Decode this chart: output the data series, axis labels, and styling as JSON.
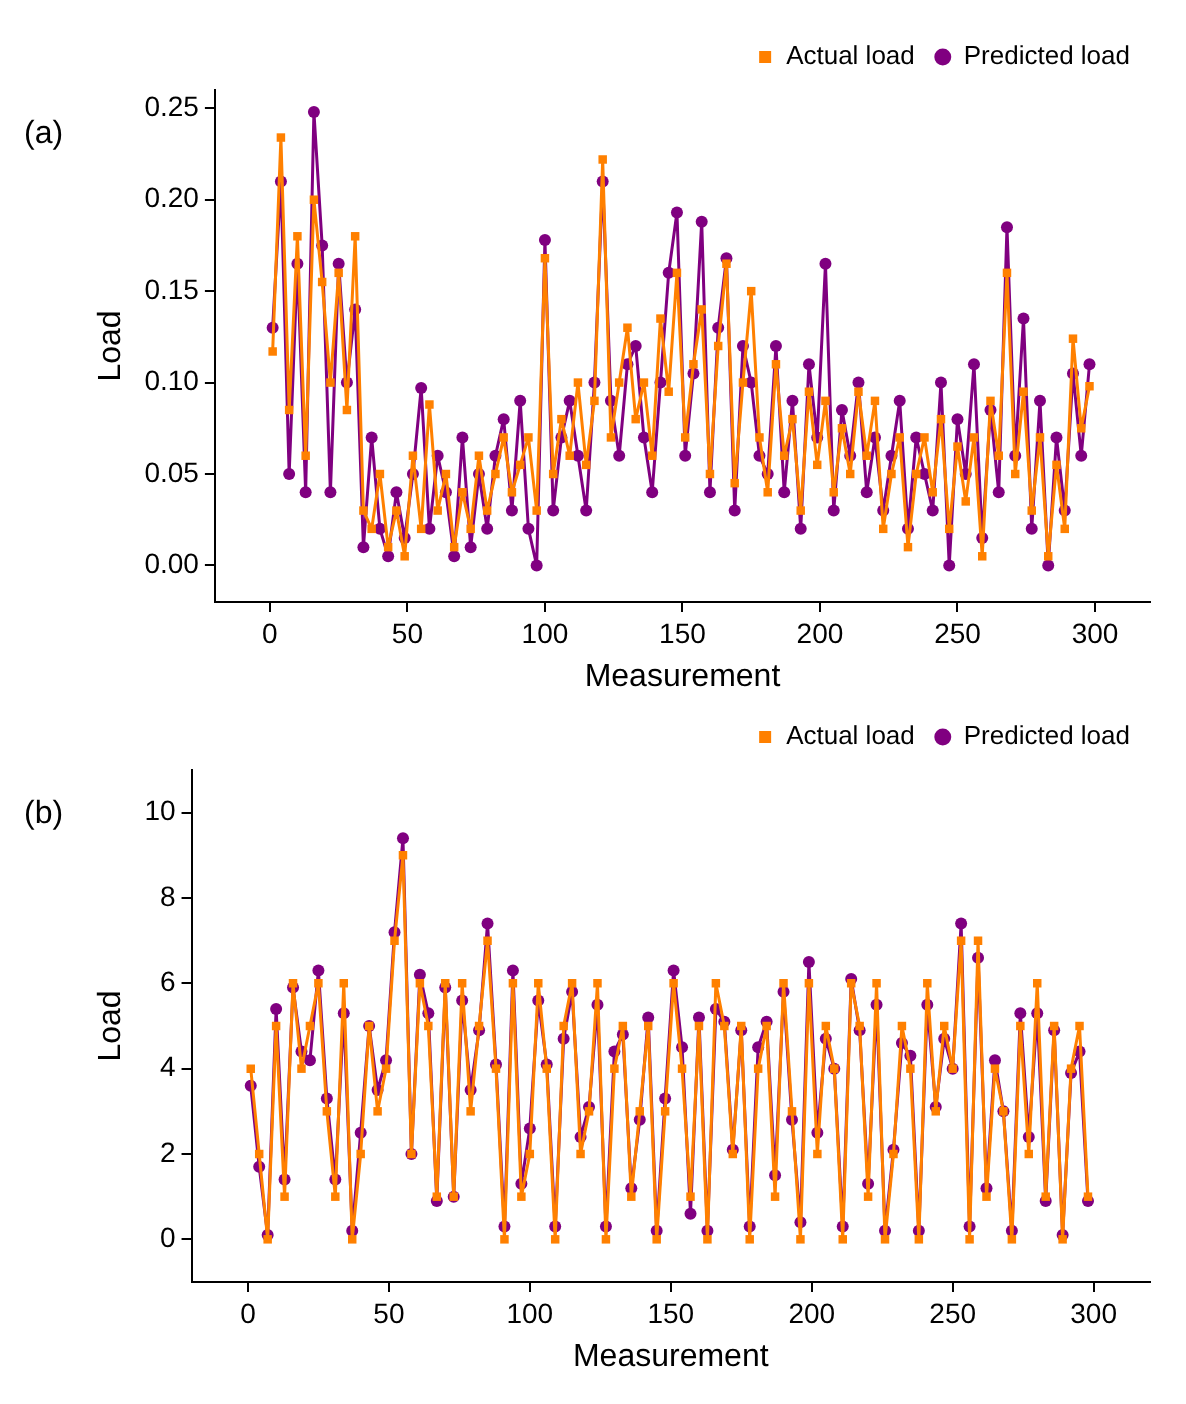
{
  "chart_data": [
    {
      "type": "line",
      "title": "(a)",
      "xlabel": "Measurement",
      "ylabel": "Load",
      "xlim": [
        -20,
        320
      ],
      "xticks": [
        0,
        50,
        100,
        150,
        200,
        250,
        300
      ],
      "ylim": [
        -0.02,
        0.26
      ],
      "yticks": [
        {
          "value": 0,
          "label": "0.00"
        },
        {
          "value": 0.05,
          "label": "0.05"
        },
        {
          "value": 0.1,
          "label": "0.10"
        },
        {
          "value": 0.15,
          "label": "0.15"
        },
        {
          "value": 0.2,
          "label": "0.20"
        },
        {
          "value": 0.25,
          "label": "0.25"
        }
      ],
      "grid": false,
      "legend": "top right",
      "line_style": "solid",
      "x": [
        1,
        4,
        7,
        10,
        13,
        16,
        19,
        22,
        25,
        28,
        31,
        34,
        37,
        40,
        43,
        46,
        49,
        52,
        55,
        58,
        61,
        64,
        67,
        70,
        73,
        76,
        79,
        82,
        85,
        88,
        91,
        94,
        97,
        100,
        103,
        106,
        109,
        112,
        115,
        118,
        121,
        124,
        127,
        130,
        133,
        136,
        139,
        142,
        145,
        148,
        151,
        154,
        157,
        160,
        163,
        166,
        169,
        172,
        175,
        178,
        181,
        184,
        187,
        190,
        193,
        196,
        199,
        202,
        205,
        208,
        211,
        214,
        217,
        220,
        223,
        226,
        229,
        232,
        235,
        238,
        241,
        244,
        247,
        250,
        253,
        256,
        259,
        262,
        265,
        268,
        271,
        274,
        277,
        280,
        283,
        286,
        289,
        292,
        295,
        298
      ],
      "series": [
        {
          "name": "Actual load",
          "color": "#ff8000",
          "marker": "square",
          "values": [
            0.117,
            0.234,
            0.085,
            0.18,
            0.06,
            0.2,
            0.155,
            0.1,
            0.16,
            0.085,
            0.18,
            0.03,
            0.02,
            0.05,
            0.01,
            0.03,
            0.005,
            0.06,
            0.02,
            0.088,
            0.03,
            0.05,
            0.01,
            0.04,
            0.02,
            0.06,
            0.03,
            0.05,
            0.07,
            0.04,
            0.055,
            0.07,
            0.03,
            0.168,
            0.05,
            0.08,
            0.06,
            0.1,
            0.055,
            0.09,
            0.222,
            0.07,
            0.1,
            0.13,
            0.08,
            0.1,
            0.06,
            0.135,
            0.095,
            0.16,
            0.07,
            0.11,
            0.14,
            0.05,
            0.12,
            0.165,
            0.045,
            0.1,
            0.15,
            0.07,
            0.04,
            0.11,
            0.06,
            0.08,
            0.03,
            0.095,
            0.055,
            0.09,
            0.04,
            0.075,
            0.05,
            0.095,
            0.06,
            0.09,
            0.02,
            0.05,
            0.07,
            0.01,
            0.05,
            0.07,
            0.04,
            0.08,
            0.02,
            0.065,
            0.035,
            0.07,
            0.005,
            0.09,
            0.06,
            0.16,
            0.05,
            0.095,
            0.03,
            0.07,
            0.005,
            0.055,
            0.02,
            0.124,
            0.075,
            0.098
          ]
        },
        {
          "name": "Predicted load",
          "color": "#800080",
          "marker": "circle",
          "values": [
            0.13,
            0.21,
            0.05,
            0.165,
            0.04,
            0.248,
            0.175,
            0.04,
            0.165,
            0.1,
            0.14,
            0.01,
            0.07,
            0.02,
            0.005,
            0.04,
            0.015,
            0.05,
            0.097,
            0.02,
            0.06,
            0.04,
            0.005,
            0.07,
            0.01,
            0.05,
            0.02,
            0.06,
            0.08,
            0.03,
            0.09,
            0.02,
            0.0,
            0.178,
            0.03,
            0.07,
            0.09,
            0.06,
            0.03,
            0.1,
            0.21,
            0.09,
            0.06,
            0.11,
            0.12,
            0.07,
            0.04,
            0.1,
            0.16,
            0.193,
            0.06,
            0.105,
            0.188,
            0.04,
            0.13,
            0.168,
            0.03,
            0.12,
            0.1,
            0.06,
            0.05,
            0.12,
            0.04,
            0.09,
            0.02,
            0.11,
            0.07,
            0.165,
            0.03,
            0.085,
            0.06,
            0.1,
            0.04,
            0.07,
            0.03,
            0.06,
            0.09,
            0.02,
            0.07,
            0.05,
            0.03,
            0.1,
            0.0,
            0.08,
            0.05,
            0.11,
            0.015,
            0.085,
            0.04,
            0.185,
            0.06,
            0.135,
            0.02,
            0.09,
            0.0,
            0.07,
            0.03,
            0.105,
            0.06,
            0.11
          ]
        }
      ]
    },
    {
      "type": "line",
      "title": "(b)",
      "xlabel": "Measurement",
      "ylabel": "Load",
      "xlim": [
        -20,
        320
      ],
      "xticks": [
        0,
        50,
        100,
        150,
        200,
        250,
        300
      ],
      "ylim": [
        -1,
        11
      ],
      "yticks": [
        0,
        2,
        4,
        6,
        8,
        10
      ],
      "grid": false,
      "legend": "top right",
      "line_style": "solid",
      "x": [
        1,
        4,
        7,
        10,
        13,
        16,
        19,
        22,
        25,
        28,
        31,
        34,
        37,
        40,
        43,
        46,
        49,
        52,
        55,
        58,
        61,
        64,
        67,
        70,
        73,
        76,
        79,
        82,
        85,
        88,
        91,
        94,
        97,
        100,
        103,
        106,
        109,
        112,
        115,
        118,
        121,
        124,
        127,
        130,
        133,
        136,
        139,
        142,
        145,
        148,
        151,
        154,
        157,
        160,
        163,
        166,
        169,
        172,
        175,
        178,
        181,
        184,
        187,
        190,
        193,
        196,
        199,
        202,
        205,
        208,
        211,
        214,
        217,
        220,
        223,
        226,
        229,
        232,
        235,
        238,
        241,
        244,
        247,
        250,
        253,
        256,
        259,
        262,
        265,
        268,
        271,
        274,
        277,
        280,
        283,
        286,
        289,
        292,
        295,
        298
      ],
      "series": [
        {
          "name": "Actual load",
          "color": "#ff8000",
          "marker": "square",
          "values": [
            4,
            2,
            0,
            5,
            1,
            6,
            4,
            5,
            6,
            3,
            1,
            6,
            0,
            2,
            5,
            3,
            4,
            7,
            9,
            2,
            6,
            5,
            1,
            6,
            1,
            6,
            3,
            5,
            7,
            4,
            0,
            6,
            1,
            2,
            6,
            4,
            0,
            5,
            6,
            2,
            3,
            6,
            0,
            4,
            5,
            1,
            3,
            5,
            0,
            3,
            6,
            4,
            1,
            5,
            0,
            6,
            5,
            2,
            5,
            0,
            4,
            5,
            1,
            6,
            3,
            0,
            6,
            2,
            5,
            4,
            0,
            6,
            5,
            1,
            6,
            0,
            2,
            5,
            4,
            0,
            6,
            3,
            5,
            4,
            7,
            0,
            7,
            1,
            4,
            3,
            0,
            5,
            2,
            6,
            1,
            5,
            0,
            4,
            5,
            1
          ]
        },
        {
          "name": "Predicted load",
          "color": "#800080",
          "marker": "circle",
          "values": [
            3.6,
            1.7,
            0.1,
            5.4,
            1.4,
            5.9,
            4.4,
            4.2,
            6.3,
            3.3,
            1.4,
            5.3,
            0.2,
            2.5,
            5.0,
            3.5,
            4.2,
            7.2,
            9.4,
            2.0,
            6.2,
            5.3,
            0.9,
            5.9,
            1.0,
            5.6,
            3.5,
            4.9,
            7.4,
            4.1,
            0.3,
            6.3,
            1.3,
            2.6,
            5.6,
            4.1,
            0.3,
            4.7,
            5.8,
            2.4,
            3.1,
            5.5,
            0.3,
            4.4,
            4.8,
            1.2,
            2.8,
            5.2,
            0.2,
            3.3,
            6.3,
            4.5,
            0.6,
            5.2,
            0.2,
            5.4,
            5.1,
            2.1,
            4.9,
            0.3,
            4.5,
            5.1,
            1.5,
            5.8,
            2.8,
            0.4,
            6.5,
            2.5,
            4.7,
            4.0,
            0.3,
            6.1,
            4.9,
            1.3,
            5.5,
            0.2,
            2.1,
            4.6,
            4.3,
            0.2,
            5.5,
            3.1,
            4.7,
            4.0,
            7.4,
            0.3,
            6.6,
            1.2,
            4.2,
            3.0,
            0.2,
            5.3,
            2.4,
            5.3,
            0.9,
            4.9,
            0.1,
            3.9,
            4.4,
            0.9
          ]
        }
      ]
    }
  ]
}
